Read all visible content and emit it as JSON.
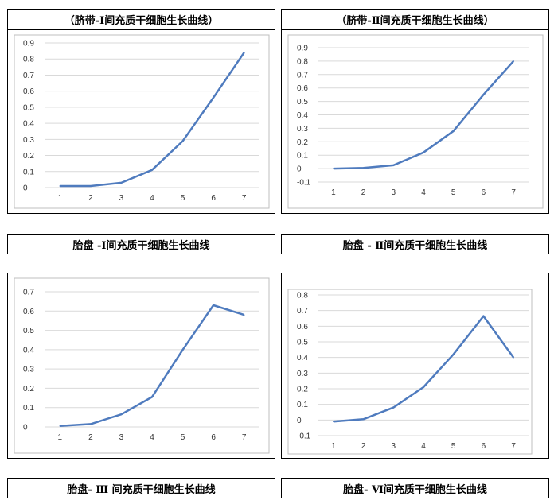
{
  "titles": {
    "t1": "（脐带-Ⅰ间充质干细胞生长曲线）",
    "t2": "（脐带-Ⅱ间充质干细胞生长曲线）",
    "t3": "胎盘 -Ⅰ间充质干细胞生长曲线",
    "t4": "胎盘 - Ⅱ间充质干细胞生长曲线",
    "t5": "胎盘- Ⅲ 间充质干细胞生长曲线",
    "t6": "胎盘- Ⅵ间充质干细胞生长曲线"
  },
  "colors": {
    "line": "#4f7bbe",
    "grid": "#d9d9d9",
    "axis": "#bfbfbf"
  },
  "chart_data": [
    {
      "type": "line",
      "title": "（脐带-Ⅰ间充质干细胞生长曲线）",
      "x": [
        1,
        2,
        3,
        4,
        5,
        6,
        7
      ],
      "y": [
        0.01,
        0.01,
        0.03,
        0.11,
        0.29,
        0.56,
        0.84
      ],
      "ylim": [
        0,
        0.9
      ],
      "yticks": [
        "0",
        "0.1",
        "0.2",
        "0.3",
        "0.4",
        "0.5",
        "0.6",
        "0.7",
        "0.8",
        "0.9"
      ],
      "grid": true
    },
    {
      "type": "line",
      "title": "（脐带-Ⅱ间充质干细胞生长曲线）",
      "x": [
        1,
        2,
        3,
        4,
        5,
        6,
        7
      ],
      "y": [
        0.0,
        0.005,
        0.025,
        0.12,
        0.28,
        0.55,
        0.8
      ],
      "ylim": [
        -0.1,
        0.9
      ],
      "yticks": [
        "-0.1",
        "0",
        "0.1",
        "0.2",
        "0.3",
        "0.4",
        "0.5",
        "0.6",
        "0.7",
        "0.8",
        "0.9"
      ],
      "grid": true
    },
    {
      "type": "line",
      "title": "胎盘- Ⅲ 间充质干细胞生长曲线",
      "x": [
        1,
        2,
        3,
        4,
        5,
        6,
        7
      ],
      "y": [
        0.005,
        0.015,
        0.065,
        0.155,
        0.4,
        0.63,
        0.58
      ],
      "ylim": [
        0,
        0.7
      ],
      "yticks": [
        "0",
        "0.1",
        "0.2",
        "0.3",
        "0.4",
        "0.5",
        "0.6",
        "0.7"
      ],
      "grid": true
    },
    {
      "type": "line",
      "title": "胎盘- Ⅵ间充质干细胞生长曲线",
      "x": [
        1,
        2,
        3,
        4,
        5,
        6,
        7
      ],
      "y": [
        -0.01,
        0.005,
        0.08,
        0.21,
        0.42,
        0.665,
        0.4
      ],
      "ylim": [
        -0.1,
        0.8
      ],
      "yticks": [
        "-0.1",
        "0",
        "0.1",
        "0.2",
        "0.3",
        "0.4",
        "0.5",
        "0.6",
        "0.7",
        "0.8"
      ],
      "grid": true
    }
  ]
}
